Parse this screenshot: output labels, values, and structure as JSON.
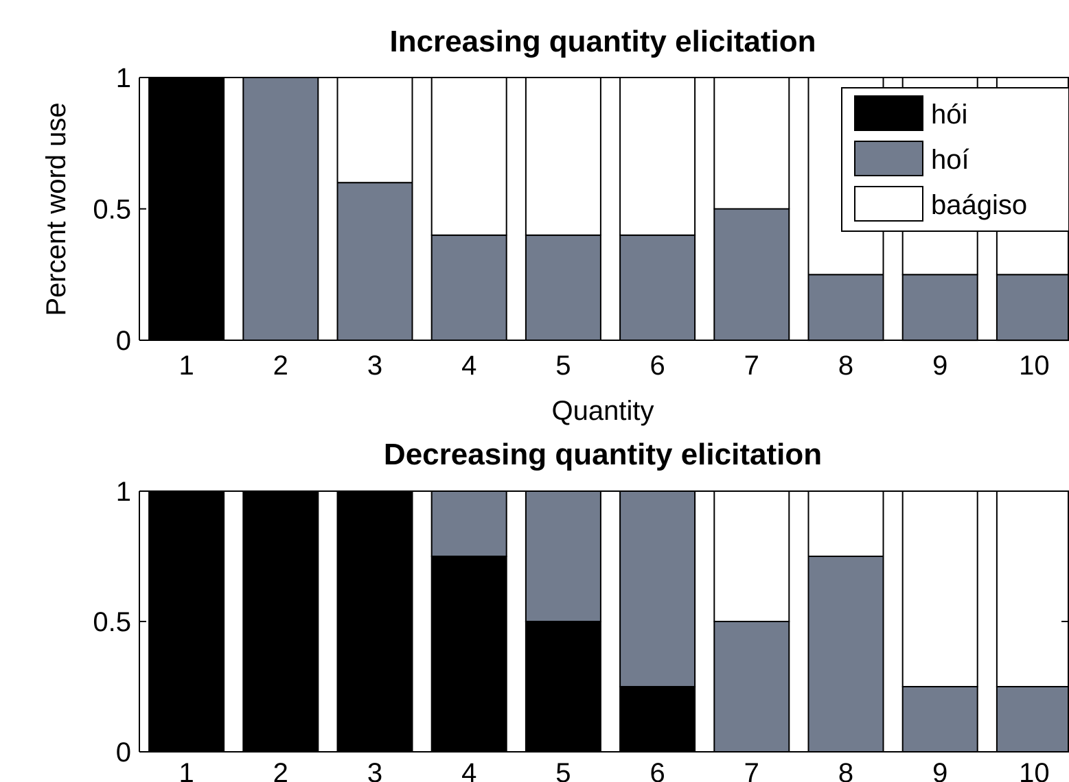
{
  "chart_data": [
    {
      "type": "bar",
      "stacked": true,
      "title": "Increasing quantity elicitation",
      "xlabel": "Quantity",
      "ylabel": "Percent word use",
      "ylim": [
        0,
        1
      ],
      "yticks": [
        "0",
        "0.5",
        "1"
      ],
      "categories": [
        "1",
        "2",
        "3",
        "4",
        "5",
        "6",
        "7",
        "8",
        "9",
        "10"
      ],
      "legend": {
        "position": "top-right"
      },
      "series": [
        {
          "name": "hói",
          "color": "#000000",
          "values": [
            1,
            0,
            0,
            0,
            0,
            0,
            0,
            0,
            0,
            0
          ]
        },
        {
          "name": "hoí",
          "color": "#727c8e",
          "values": [
            0,
            1,
            0.6,
            0.4,
            0.4,
            0.4,
            0.5,
            0.25,
            0.25,
            0.25
          ]
        },
        {
          "name": "baágiso",
          "color": "#ffffff",
          "values": [
            0,
            0,
            0.4,
            0.6,
            0.6,
            0.6,
            0.5,
            0.75,
            0.75,
            0.75
          ]
        }
      ]
    },
    {
      "type": "bar",
      "stacked": true,
      "title": "Decreasing quantity elicitation",
      "xlabel": "",
      "ylabel": "",
      "ylim": [
        0,
        1
      ],
      "yticks": [
        "0",
        "0.5",
        "1"
      ],
      "categories": [
        "1",
        "2",
        "3",
        "4",
        "5",
        "6",
        "7",
        "8",
        "9",
        "10"
      ],
      "series": [
        {
          "name": "hói",
          "color": "#000000",
          "values": [
            1,
            1,
            1,
            0.75,
            0.5,
            0.25,
            0,
            0,
            0,
            0
          ]
        },
        {
          "name": "hoí",
          "color": "#727c8e",
          "values": [
            0,
            0,
            0,
            0.25,
            0.5,
            0.75,
            0.5,
            0.75,
            0.25,
            0.25
          ]
        },
        {
          "name": "baágiso",
          "color": "#ffffff",
          "values": [
            0,
            0,
            0,
            0,
            0,
            0,
            0.5,
            0.25,
            0.75,
            0.75
          ]
        }
      ]
    }
  ]
}
